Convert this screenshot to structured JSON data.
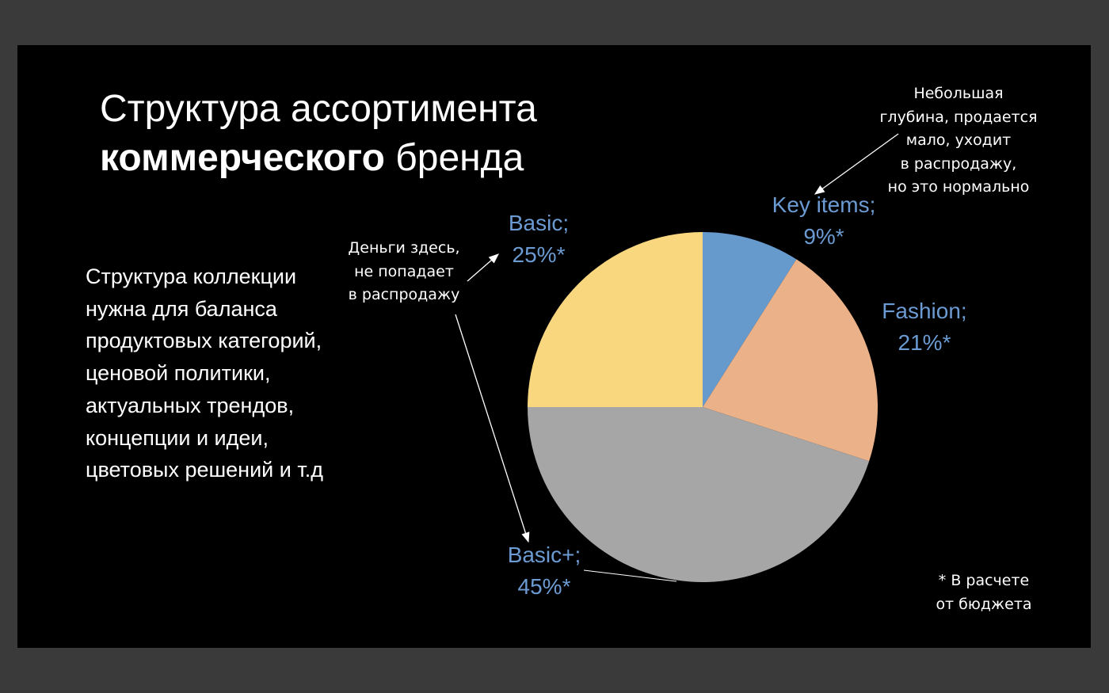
{
  "slide": {
    "title_line1": "Структура ассортимента",
    "title_bold": "коммерческого",
    "title_rest": " бренда",
    "body": "Структура коллекции нужна для баланса продуктовых категорий, ценовой политики, актуальных трендов, концепции и идеи, цветовых решений и т.д",
    "notes": {
      "basic": "Деньги здесь, не попадает в распродажу",
      "key_items": "Небольшая глубина, продается мало, уходит в распродажу, но это нормально",
      "budget": "* В расчете от бюджета"
    }
  },
  "chart_data": {
    "type": "pie",
    "start_angle_deg": 0,
    "direction": "clockwise",
    "label_color": "#6b9bd2",
    "slices": [
      {
        "label": "Key items;",
        "value_label": "9%*",
        "value": 9,
        "color": "#6699cc"
      },
      {
        "label": "Fashion;",
        "value_label": "21%*",
        "value": 21,
        "color": "#ebb189"
      },
      {
        "label": "Basic+;",
        "value_label": "45%*",
        "value": 45,
        "color": "#a6a6a6"
      },
      {
        "label": "Basic;",
        "value_label": "25%*",
        "value": 25,
        "color": "#f9d77e"
      }
    ]
  }
}
